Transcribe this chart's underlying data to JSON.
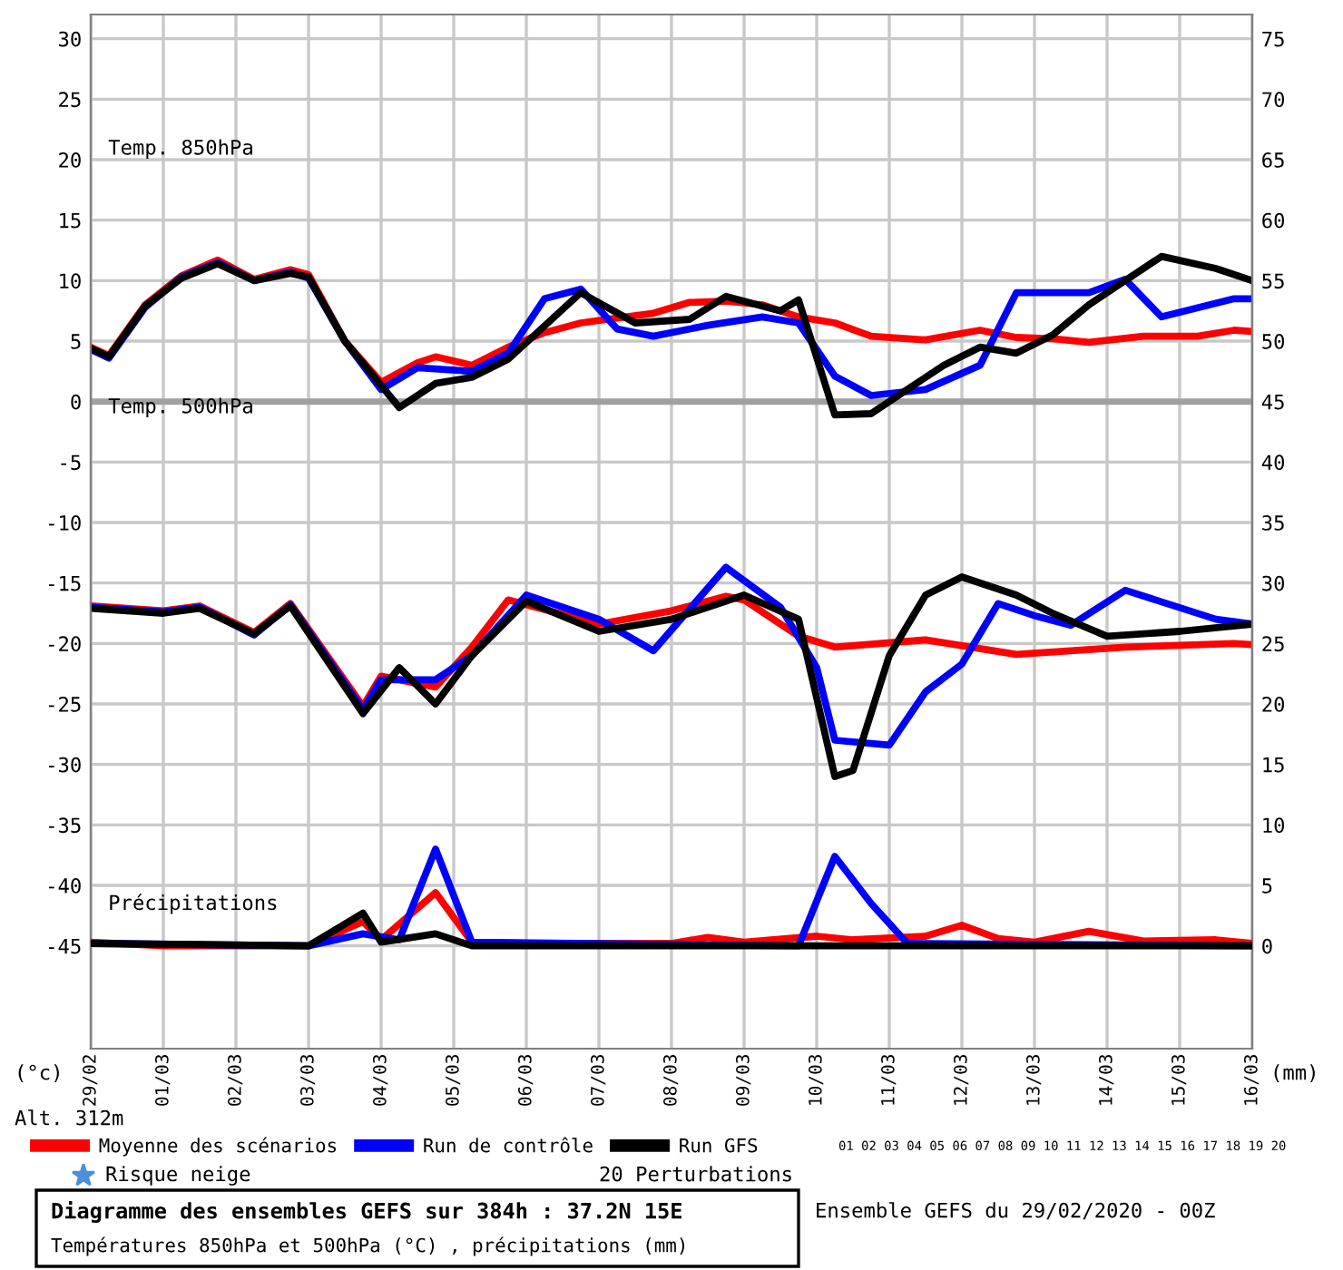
{
  "chart_data": {
    "type": "line",
    "title": "Diagramme des ensembles GEFS sur 384h : 37.2N 15E",
    "subtitle": "Températures 850hPa et 500hPa (°C) , précipitations (mm)",
    "ylabel": "(°c)",
    "y2label": "(mm)",
    "annotations": [
      "Temp. 850hPa",
      "Temp. 500hPa",
      "Précipitations",
      "Alt. 312m",
      "Risque neige",
      "20 Perturbations",
      "01 02 03 04 05 06 07 08 09 10 11 12 13 14 15 16 17 18 19 20",
      "Ensemble GEFS du 29/02/2020 - 00Z"
    ],
    "xlim": [
      "2020-02-29",
      "2020-03-16"
    ],
    "xticks": [
      {
        "value": "2020-02-29",
        "label": "29/02"
      },
      {
        "value": "2020-03-01",
        "label": "01/03"
      },
      {
        "value": "2020-03-02",
        "label": "02/03"
      },
      {
        "value": "2020-03-03",
        "label": "03/03"
      },
      {
        "value": "2020-03-04",
        "label": "04/03"
      },
      {
        "value": "2020-03-05",
        "label": "05/03"
      },
      {
        "value": "2020-03-06",
        "label": "06/03"
      },
      {
        "value": "2020-03-07",
        "label": "07/03"
      },
      {
        "value": "2020-03-08",
        "label": "08/03"
      },
      {
        "value": "2020-03-09",
        "label": "09/03"
      },
      {
        "value": "2020-03-10",
        "label": "10/03"
      },
      {
        "value": "2020-03-11",
        "label": "11/03"
      },
      {
        "value": "2020-03-12",
        "label": "12/03"
      },
      {
        "value": "2020-03-13",
        "label": "13/03"
      },
      {
        "value": "2020-03-14",
        "label": "14/03"
      },
      {
        "value": "2020-03-15",
        "label": "15/03"
      },
      {
        "value": "2020-03-16",
        "label": "16/03"
      }
    ],
    "ylim": [
      -53.5,
      32
    ],
    "yticks": [
      -45,
      -40,
      -35,
      -30,
      -25,
      -20,
      -15,
      -10,
      -5,
      0,
      5,
      10,
      15,
      20,
      25,
      30
    ],
    "y2lim": [
      -8.5,
      77
    ],
    "y2ticks": [
      0,
      5,
      10,
      15,
      20,
      25,
      30,
      35,
      40,
      45,
      50,
      55,
      60,
      65,
      70,
      75
    ],
    "grid": true,
    "legend": "bottom",
    "ref_lines": [
      {
        "axis": "y",
        "value": 0,
        "color": "#a0a0a0"
      }
    ],
    "series": [
      {
        "name": "Moyenne des scénarios",
        "color": "#ff0000",
        "x": [
          "2020-02-29T00:00",
          "2020-02-29T06:00",
          "2020-02-29T18:00",
          "2020-03-01T06:00",
          "2020-03-01T18:00",
          "2020-03-02T06:00",
          "2020-03-02T18:00",
          "2020-03-03T00:00",
          "2020-03-03T12:00",
          "2020-03-04T00:00",
          "2020-03-04T12:00",
          "2020-03-04T18:00",
          "2020-03-05T06:00",
          "2020-03-05T18:00",
          "2020-03-06T06:00",
          "2020-03-06T18:00",
          "2020-03-07T06:00",
          "2020-03-07T18:00",
          "2020-03-08T06:00",
          "2020-03-08T18:00",
          "2020-03-09T06:00",
          "2020-03-09T18:00",
          "2020-03-10T06:00",
          "2020-03-10T18:00",
          "2020-03-11T12:00",
          "2020-03-12T06:00",
          "2020-03-12T18:00",
          "2020-03-13T06:00",
          "2020-03-13T18:00",
          "2020-03-14T12:00",
          "2020-03-15T06:00",
          "2020-03-15T18:00",
          "2020-03-16T00:00"
        ],
        "values": [
          4.5,
          3.8,
          8,
          10.4,
          11.7,
          10.1,
          10.9,
          10.5,
          5,
          1.6,
          3.2,
          3.7,
          3,
          4.5,
          5.7,
          6.5,
          6.9,
          7.3,
          8.2,
          8.3,
          8,
          7,
          6.5,
          5.4,
          5.1,
          5.9,
          5.3,
          5.2,
          4.9,
          5.4,
          5.4,
          5.9,
          5.8
        ]
      },
      {
        "name": "Run de contrôle",
        "color": "#0000ff",
        "x": [
          "2020-02-29T00:00",
          "2020-02-29T06:00",
          "2020-02-29T18:00",
          "2020-03-01T06:00",
          "2020-03-01T18:00",
          "2020-03-02T06:00",
          "2020-03-02T18:00",
          "2020-03-03T00:00",
          "2020-03-03T12:00",
          "2020-03-04T00:00",
          "2020-03-04T12:00",
          "2020-03-05T06:00",
          "2020-03-05T18:00",
          "2020-03-06T06:00",
          "2020-03-06T18:00",
          "2020-03-07T06:00",
          "2020-03-07T18:00",
          "2020-03-08T12:00",
          "2020-03-09T06:00",
          "2020-03-09T18:00",
          "2020-03-10T06:00",
          "2020-03-10T18:00",
          "2020-03-11T12:00",
          "2020-03-12T06:00",
          "2020-03-12T18:00",
          "2020-03-13T18:00",
          "2020-03-14T06:00",
          "2020-03-14T18:00",
          "2020-03-15T18:00",
          "2020-03-16T00:00"
        ],
        "values": [
          4.3,
          3.6,
          7.8,
          10.3,
          11.5,
          10,
          10.7,
          10.2,
          5,
          1,
          2.8,
          2.5,
          4,
          8.5,
          9.3,
          6,
          5.4,
          6.3,
          7,
          6.5,
          2.1,
          0.5,
          1,
          3,
          9,
          9,
          10.1,
          7,
          8.5,
          8.5
        ]
      },
      {
        "name": "Run GFS",
        "color": "#000000",
        "x": [
          "2020-02-29T00:00",
          "2020-02-29T06:00",
          "2020-02-29T18:00",
          "2020-03-01T06:00",
          "2020-03-01T18:00",
          "2020-03-02T06:00",
          "2020-03-02T18:00",
          "2020-03-03T00:00",
          "2020-03-03T12:00",
          "2020-03-04T06:00",
          "2020-03-04T18:00",
          "2020-03-05T06:00",
          "2020-03-05T18:00",
          "2020-03-06T18:00",
          "2020-03-07T12:00",
          "2020-03-08T06:00",
          "2020-03-08T18:00",
          "2020-03-09T12:00",
          "2020-03-09T18:00",
          "2020-03-10T06:00",
          "2020-03-10T18:00",
          "2020-03-11T06:00",
          "2020-03-11T18:00",
          "2020-03-12T06:00",
          "2020-03-12T18:00",
          "2020-03-13T06:00",
          "2020-03-13T18:00",
          "2020-03-14T06:00",
          "2020-03-14T18:00",
          "2020-03-15T12:00",
          "2020-03-16T00:00"
        ],
        "values": [
          4.4,
          3.7,
          7.9,
          10.2,
          11.4,
          10,
          10.6,
          10.3,
          5,
          -0.5,
          1.5,
          2,
          3.5,
          9,
          6.5,
          6.8,
          8.7,
          7.5,
          8.4,
          -1.1,
          -1,
          1,
          3,
          4.5,
          4,
          5.5,
          8,
          10,
          12,
          11,
          10
        ]
      },
      {
        "color": "#ff0000",
        "x": [
          "2020-02-29T00:00",
          "2020-03-01T00:00",
          "2020-03-01T12:00",
          "2020-03-02T06:00",
          "2020-03-02T18:00",
          "2020-03-03T18:00",
          "2020-03-04T00:00",
          "2020-03-04T18:00",
          "2020-03-05T06:00",
          "2020-03-05T18:00",
          "2020-03-07T00:00",
          "2020-03-08T00:00",
          "2020-03-08T18:00",
          "2020-03-09T00:00",
          "2020-03-09T18:00",
          "2020-03-10T06:00",
          "2020-03-11T12:00",
          "2020-03-12T18:00",
          "2020-03-14T06:00",
          "2020-03-15T18:00",
          "2020-03-16T00:00"
        ],
        "values": [
          -16.9,
          -17.3,
          -16.9,
          -19.1,
          -16.7,
          -25.2,
          -22.7,
          -23.6,
          -20.3,
          -16.4,
          -18.4,
          -17.3,
          -16.1,
          -16.4,
          -19.4,
          -20.3,
          -19.7,
          -20.9,
          -20.3,
          -20,
          -20.1
        ]
      },
      {
        "color": "#0000ff",
        "x": [
          "2020-02-29T00:00",
          "2020-03-01T00:00",
          "2020-03-01T12:00",
          "2020-03-02T06:00",
          "2020-03-02T18:00",
          "2020-03-03T18:00",
          "2020-03-04T00:00",
          "2020-03-04T18:00",
          "2020-03-05T06:00",
          "2020-03-06T00:00",
          "2020-03-07T00:00",
          "2020-03-07T18:00",
          "2020-03-08T18:00",
          "2020-03-09T12:00",
          "2020-03-10T00:00",
          "2020-03-10T06:00",
          "2020-03-11T00:00",
          "2020-03-11T12:00",
          "2020-03-12T00:00",
          "2020-03-12T12:00",
          "2020-03-13T00:00",
          "2020-03-13T12:00",
          "2020-03-14T06:00",
          "2020-03-15T12:00",
          "2020-03-16T00:00"
        ],
        "values": [
          -17,
          -17.4,
          -17,
          -19.3,
          -16.8,
          -25.5,
          -23,
          -23,
          -21,
          -16,
          -18,
          -20.6,
          -13.7,
          -17,
          -22,
          -28,
          -28.4,
          -24,
          -21.7,
          -16.7,
          -17.7,
          -18.5,
          -15.6,
          -18,
          -18.4
        ]
      },
      {
        "color": "#000000",
        "x": [
          "2020-02-29T00:00",
          "2020-03-01T00:00",
          "2020-03-01T12:00",
          "2020-03-02T06:00",
          "2020-03-02T18:00",
          "2020-03-03T18:00",
          "2020-03-04T06:00",
          "2020-03-04T18:00",
          "2020-03-05T06:00",
          "2020-03-06T00:00",
          "2020-03-07T00:00",
          "2020-03-08T00:00",
          "2020-03-09T00:00",
          "2020-03-09T18:00",
          "2020-03-10T06:00",
          "2020-03-10T12:00",
          "2020-03-11T00:00",
          "2020-03-11T12:00",
          "2020-03-12T00:00",
          "2020-03-12T18:00",
          "2020-03-13T06:00",
          "2020-03-14T00:00",
          "2020-03-15T00:00",
          "2020-03-16T00:00"
        ],
        "values": [
          -17.1,
          -17.5,
          -17.1,
          -19.2,
          -16.9,
          -25.8,
          -22,
          -25,
          -21,
          -16.5,
          -19,
          -18,
          -16,
          -18,
          -31,
          -30.5,
          -21,
          -16,
          -14.5,
          -16,
          -17.5,
          -19.4,
          -19,
          -18.4
        ]
      },
      {
        "axis": "y2",
        "color": "#ff0000",
        "x": [
          "2020-02-29T00:00",
          "2020-03-01T00:00",
          "2020-03-03T00:00",
          "2020-03-03T18:00",
          "2020-03-04T00:00",
          "2020-03-04T18:00",
          "2020-03-05T06:00",
          "2020-03-06T00:00",
          "2020-03-08T00:00",
          "2020-03-08T12:00",
          "2020-03-09T00:00",
          "2020-03-10T00:00",
          "2020-03-10T12:00",
          "2020-03-11T12:00",
          "2020-03-12T00:00",
          "2020-03-12T12:00",
          "2020-03-13T00:00",
          "2020-03-13T18:00",
          "2020-03-14T12:00",
          "2020-03-15T12:00",
          "2020-03-16T00:00"
        ],
        "values": [
          0.3,
          0,
          0,
          2,
          0.5,
          4.4,
          0.3,
          0.2,
          0.2,
          0.7,
          0.3,
          0.8,
          0.5,
          0.8,
          1.7,
          0.6,
          0.3,
          1.2,
          0.4,
          0.5,
          0.2
        ]
      },
      {
        "axis": "y2",
        "color": "#0000ff",
        "x": [
          "2020-02-29T00:00",
          "2020-03-03T00:00",
          "2020-03-03T18:00",
          "2020-03-04T06:00",
          "2020-03-04T18:00",
          "2020-03-05T06:00",
          "2020-03-09T18:00",
          "2020-03-10T06:00",
          "2020-03-10T18:00",
          "2020-03-11T06:00",
          "2020-03-16T00:00"
        ],
        "values": [
          0.2,
          0,
          1,
          0.5,
          8,
          0.3,
          0,
          7.4,
          3.5,
          0.2,
          0
        ]
      },
      {
        "axis": "y2",
        "color": "#000000",
        "x": [
          "2020-02-29T00:00",
          "2020-03-03T00:00",
          "2020-03-03T18:00",
          "2020-03-04T00:00",
          "2020-03-04T18:00",
          "2020-03-05T06:00",
          "2020-03-16T00:00"
        ],
        "values": [
          0.2,
          0,
          2.7,
          0.3,
          1,
          0,
          0
        ]
      }
    ]
  }
}
